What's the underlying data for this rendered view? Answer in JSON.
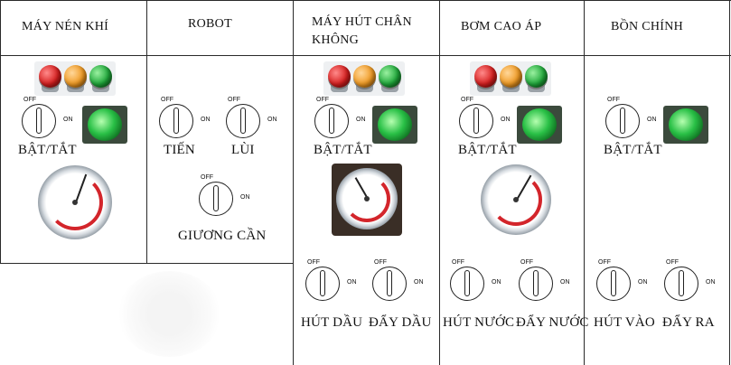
{
  "headers": {
    "compressor": "MÁY NÉN KHÍ",
    "robot": "ROBOT",
    "vacuum_line1": "MÁY HÚT CHÂN",
    "vacuum_line2": "KHÔNG",
    "pump": "BƠM CAO ÁP",
    "tank": "BỒN CHÍNH"
  },
  "switch_labels": {
    "off": "OFF",
    "on": "ON"
  },
  "compressor": {
    "switch_label": "BẬT/TẮT"
  },
  "robot": {
    "forward_label": "TIẾN",
    "back_label": "LÙI",
    "boom_label": "GIƯƠNG CẦN"
  },
  "vacuum": {
    "switch_label": "BẬT/TẮT",
    "suck_oil_label": "HÚT DẦU",
    "push_oil_label": "ĐẨY DẦU"
  },
  "pump": {
    "switch_label": "BẬT/TẮT",
    "suck_water_label": "HÚT NƯỚC",
    "push_water_label": "ĐẨY NƯỚC"
  },
  "tank": {
    "switch_label": "BẬT/TẮT",
    "suck_in_label": "HÚT VÀO",
    "push_out_label": "ĐẨY RA"
  },
  "colors": {
    "red_lamp": "#d61f1f",
    "orange_lamp": "#f09a23",
    "green_lamp": "#1fa83a",
    "gauge_red_zone": "#d3252b"
  }
}
